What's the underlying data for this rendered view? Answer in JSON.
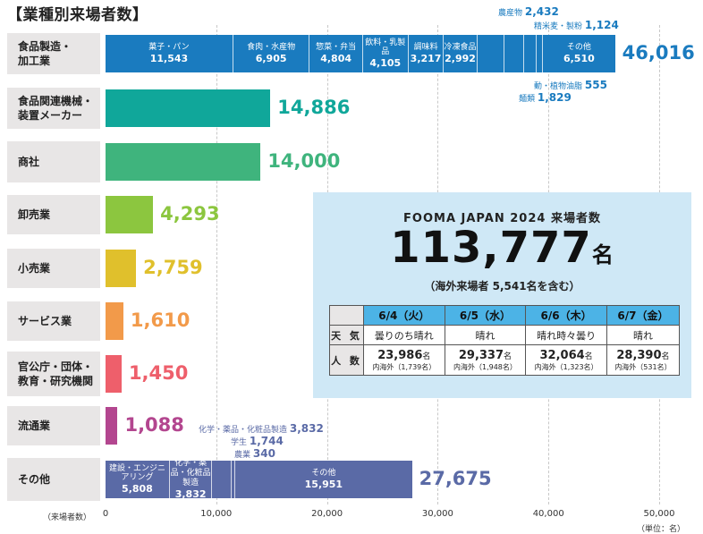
{
  "title": "【業種別来場者数】",
  "chart_data": {
    "type": "bar",
    "orientation": "horizontal",
    "stacked": true,
    "xlabel": "（来場者数）",
    "unit": "（単位：名）",
    "xlim": [
      0,
      50000
    ],
    "xticks": [
      "0",
      "10,000",
      "20,000",
      "30,000",
      "40,000",
      "50,000"
    ],
    "grid": true,
    "categories": [
      {
        "label": "食品製造・加工業",
        "total": 46016,
        "total_label": "46,016",
        "color": "#1a7bbf",
        "segments": [
          {
            "name": "菓子・パン",
            "value": 11543,
            "value_label": "11,543"
          },
          {
            "name": "食肉・水産物",
            "value": 6905,
            "value_label": "6,905"
          },
          {
            "name": "惣菜・弁当",
            "value": 4804,
            "value_label": "4,804"
          },
          {
            "name": "飲料・乳製品",
            "value": 4105,
            "value_label": "4,105"
          },
          {
            "name": "調味料",
            "value": 3217,
            "value_label": "3,217"
          },
          {
            "name": "冷凍食品",
            "value": 2992,
            "value_label": "2,992"
          },
          {
            "name": "農産物",
            "value": 2432,
            "value_label": "2,432"
          },
          {
            "name": "麺類",
            "value": 1829,
            "value_label": "1,829"
          },
          {
            "name": "精米麦・製粉",
            "value": 1124,
            "value_label": "1,124"
          },
          {
            "name": "動・植物油脂",
            "value": 555,
            "value_label": "555"
          },
          {
            "name": "その他",
            "value": 6510,
            "value_label": "6,510"
          }
        ]
      },
      {
        "label": "食品関連機械・装置メーカー",
        "total": 14886,
        "total_label": "14,886",
        "color": "#10a79a",
        "segments": []
      },
      {
        "label": "商社",
        "total": 14000,
        "total_label": "14,000",
        "color": "#3fb47d",
        "segments": []
      },
      {
        "label": "卸売業",
        "total": 4293,
        "total_label": "4,293",
        "color": "#8cc63f",
        "segments": []
      },
      {
        "label": "小売業",
        "total": 2759,
        "total_label": "2,759",
        "color": "#e0c02c",
        "segments": []
      },
      {
        "label": "サービス業",
        "total": 1610,
        "total_label": "1,610",
        "color": "#f29a4a",
        "segments": []
      },
      {
        "label": "官公庁・団体・教育・研究機関",
        "total": 1450,
        "total_label": "1,450",
        "color": "#ee5f6b",
        "segments": []
      },
      {
        "label": "流通業",
        "total": 1088,
        "total_label": "1,088",
        "color": "#b3468f",
        "segments": []
      },
      {
        "label": "その他",
        "total": 27675,
        "total_label": "27,675",
        "color": "#5a6aa6",
        "segments": [
          {
            "name": "建設・エンジニアリング",
            "value": 5808,
            "value_label": "5,808"
          },
          {
            "name": "化学・薬品・化粧品製造",
            "value": 3832,
            "value_label": "3,832"
          },
          {
            "name": "学生",
            "value": 1744,
            "value_label": "1,744"
          },
          {
            "name": "農業",
            "value": 340,
            "value_label": "340"
          },
          {
            "name": "その他",
            "value": 15951,
            "value_label": "15,951"
          }
        ]
      }
    ]
  },
  "summary": {
    "heading": "FOOMA JAPAN 2024 来場者数",
    "total": "113,777",
    "total_unit": "名",
    "overseas_note": "（海外来場者 5,541名を含む）",
    "weather_label": "天 気",
    "visitors_label": "人 数",
    "days": [
      {
        "date": "6/4",
        "dow": "（火）",
        "weather": "曇りのち晴れ",
        "visitors": "23,986",
        "visitors_unit": "名",
        "overseas": "内海外（1,739名）"
      },
      {
        "date": "6/5",
        "dow": "（水）",
        "weather": "晴れ",
        "visitors": "29,337",
        "visitors_unit": "名",
        "overseas": "内海外（1,948名）"
      },
      {
        "date": "6/6",
        "dow": "（木）",
        "weather": "晴れ時々曇り",
        "visitors": "32,064",
        "visitors_unit": "名",
        "overseas": "内海外（1,323名）"
      },
      {
        "date": "6/7",
        "dow": "（金）",
        "weather": "晴れ",
        "visitors": "28,390",
        "visitors_unit": "名",
        "overseas": "内海外（531名）"
      }
    ]
  }
}
